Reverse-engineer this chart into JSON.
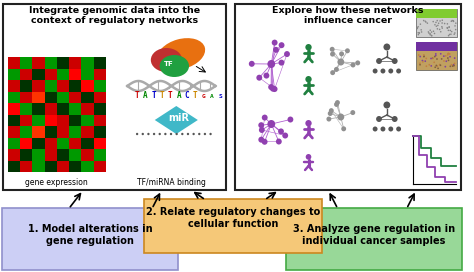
{
  "title_left": "Integrate genomic data into the\ncontext of regulatory networks",
  "title_right": "Explore how these networks\ninfluence cancer",
  "box1_text": "1. Model alterations in\ngene regulation",
  "box2_text": "2. Relate regulatory changes to\ncellular function",
  "box3_text": "3. Analyze gene regulation in\nindividual cancer samples",
  "box1_color": "#cccff5",
  "box2_color": "#f5c878",
  "box3_color": "#98d898",
  "box1_edge": "#9090cc",
  "box2_edge": "#cc8820",
  "box3_edge": "#44aa44",
  "label_gene_expr": "gene expression",
  "label_tfmir": "TF/miRNA binding",
  "bg_color": "#ffffff",
  "panel_border": "#222222",
  "heatmap_colors": [
    [
      "#cc0000",
      "#009900",
      "#cc0000",
      "#009900",
      "#003300",
      "#cc0000",
      "#009900",
      "#003300"
    ],
    [
      "#009900",
      "#cc0000",
      "#003300",
      "#cc0000",
      "#009900",
      "#ff0000",
      "#009900",
      "#cc0000"
    ],
    [
      "#cc0000",
      "#003300",
      "#cc0000",
      "#009900",
      "#cc0000",
      "#003300",
      "#ff0000",
      "#009900"
    ],
    [
      "#009900",
      "#cc0000",
      "#ff3300",
      "#003300",
      "#009900",
      "#cc0000",
      "#003300",
      "#cc0000"
    ],
    [
      "#ff0000",
      "#009900",
      "#003300",
      "#cc0000",
      "#003300",
      "#009900",
      "#cc0000",
      "#003300"
    ],
    [
      "#003300",
      "#cc0000",
      "#009900",
      "#ff0000",
      "#cc0000",
      "#003300",
      "#009900",
      "#cc0000"
    ],
    [
      "#cc0000",
      "#009900",
      "#ff3300",
      "#003300",
      "#cc0000",
      "#009900",
      "#cc0000",
      "#003300"
    ],
    [
      "#009900",
      "#ff0000",
      "#003300",
      "#cc0000",
      "#009900",
      "#cc0000",
      "#003300",
      "#ff0000"
    ],
    [
      "#cc0000",
      "#003300",
      "#009900",
      "#cc0000",
      "#003300",
      "#009900",
      "#cc0000",
      "#009900"
    ],
    [
      "#003300",
      "#cc0000",
      "#009900",
      "#003300",
      "#cc0000",
      "#003300",
      "#009900",
      "#cc0000"
    ]
  ]
}
